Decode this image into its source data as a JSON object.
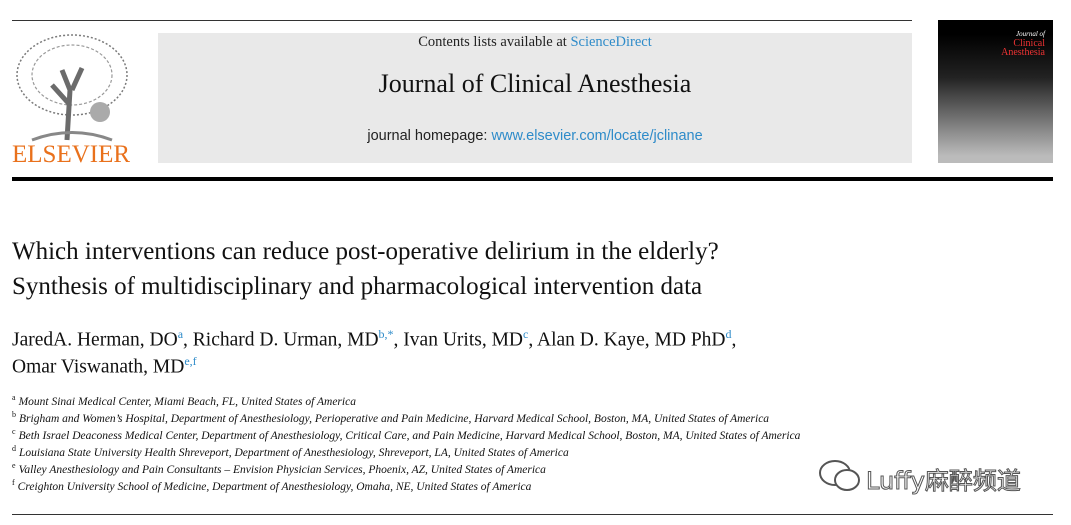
{
  "header": {
    "publisher": "ELSEVIER",
    "contents_prefix": "Contents lists available at",
    "contents_link": "ScienceDirect",
    "journal": "Journal of Clinical Anesthesia",
    "homepage_prefix": "journal homepage:",
    "homepage_link": "www.elsevier.com/locate/jclinane",
    "cover_title_1": "Journal of",
    "cover_title_2": "Clinical",
    "cover_title_3": "Anesthesia"
  },
  "article": {
    "title_lines": [
      "Which interventions can reduce post-operative delirium in the elderly?",
      "Synthesis of multidisciplinary and pharmacological intervention data"
    ],
    "authors": [
      {
        "name": "JaredA. Herman, DO",
        "sup": "a",
        "sep": ","
      },
      {
        "name": "Richard D. Urman, MD",
        "sup": "b,*",
        "sep": ","
      },
      {
        "name": "Ivan Urits, MD",
        "sup": "c",
        "sep": ","
      },
      {
        "name": "Alan D. Kaye, MD PhD",
        "sup": "d",
        "sep": ","
      },
      {
        "name": "Omar Viswanath, MD",
        "sup": "e,f"
      }
    ],
    "affiliations": [
      {
        "sup": "a",
        "text": "Mount Sinai Medical Center, Miami Beach, FL, United States of America"
      },
      {
        "sup": "b",
        "text": "Brigham and Women’s Hospital, Department of Anesthesiology, Perioperative and Pain Medicine, Harvard Medical School, Boston, MA, United States of America"
      },
      {
        "sup": "c",
        "text": "Beth Israel Deaconess Medical Center, Department of Anesthesiology, Critical Care, and Pain Medicine, Harvard Medical School, Boston, MA, United States of America"
      },
      {
        "sup": "d",
        "text": "Louisiana State University Health Shreveport, Department of Anesthesiology, Shreveport, LA, United States of America"
      },
      {
        "sup": "e",
        "text": "Valley Anesthesiology and Pain Consultants – Envision Physician Services, Phoenix, AZ, United States of America"
      },
      {
        "sup": "f",
        "text": "Creighton University School of Medicine, Department of Anesthesiology, Omaha, NE, United States of America"
      }
    ]
  },
  "watermark": "Luffy麻醉频道"
}
